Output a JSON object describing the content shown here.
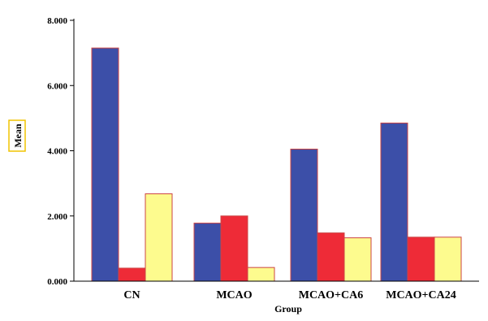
{
  "chart_data": {
    "type": "bar",
    "title": "",
    "xlabel": "Group",
    "ylabel": "Mean",
    "categories": [
      "CN",
      "MCAO",
      "MCAO+CA6",
      "MCAO+CA24"
    ],
    "series": [
      {
        "values": [
          7.15,
          1.78,
          4.05,
          4.85
        ]
      },
      {
        "values": [
          0.4,
          2.0,
          1.48,
          1.35
        ]
      },
      {
        "values": [
          2.68,
          0.42,
          1.33,
          1.35
        ]
      }
    ],
    "series_colors": [
      "#3c4fa8",
      "#ee2b37",
      "#fdfb8e"
    ],
    "bar_edge_color": "#cc4444",
    "ylabel_box_color": "#f0c400",
    "ylim": [
      0,
      8
    ],
    "yticks": [
      0,
      2,
      4,
      6,
      8
    ],
    "ytick_labels": [
      "0.000",
      "2.000",
      "4.000",
      "6.000",
      "8.000"
    ],
    "grid": false,
    "legend": "none"
  }
}
